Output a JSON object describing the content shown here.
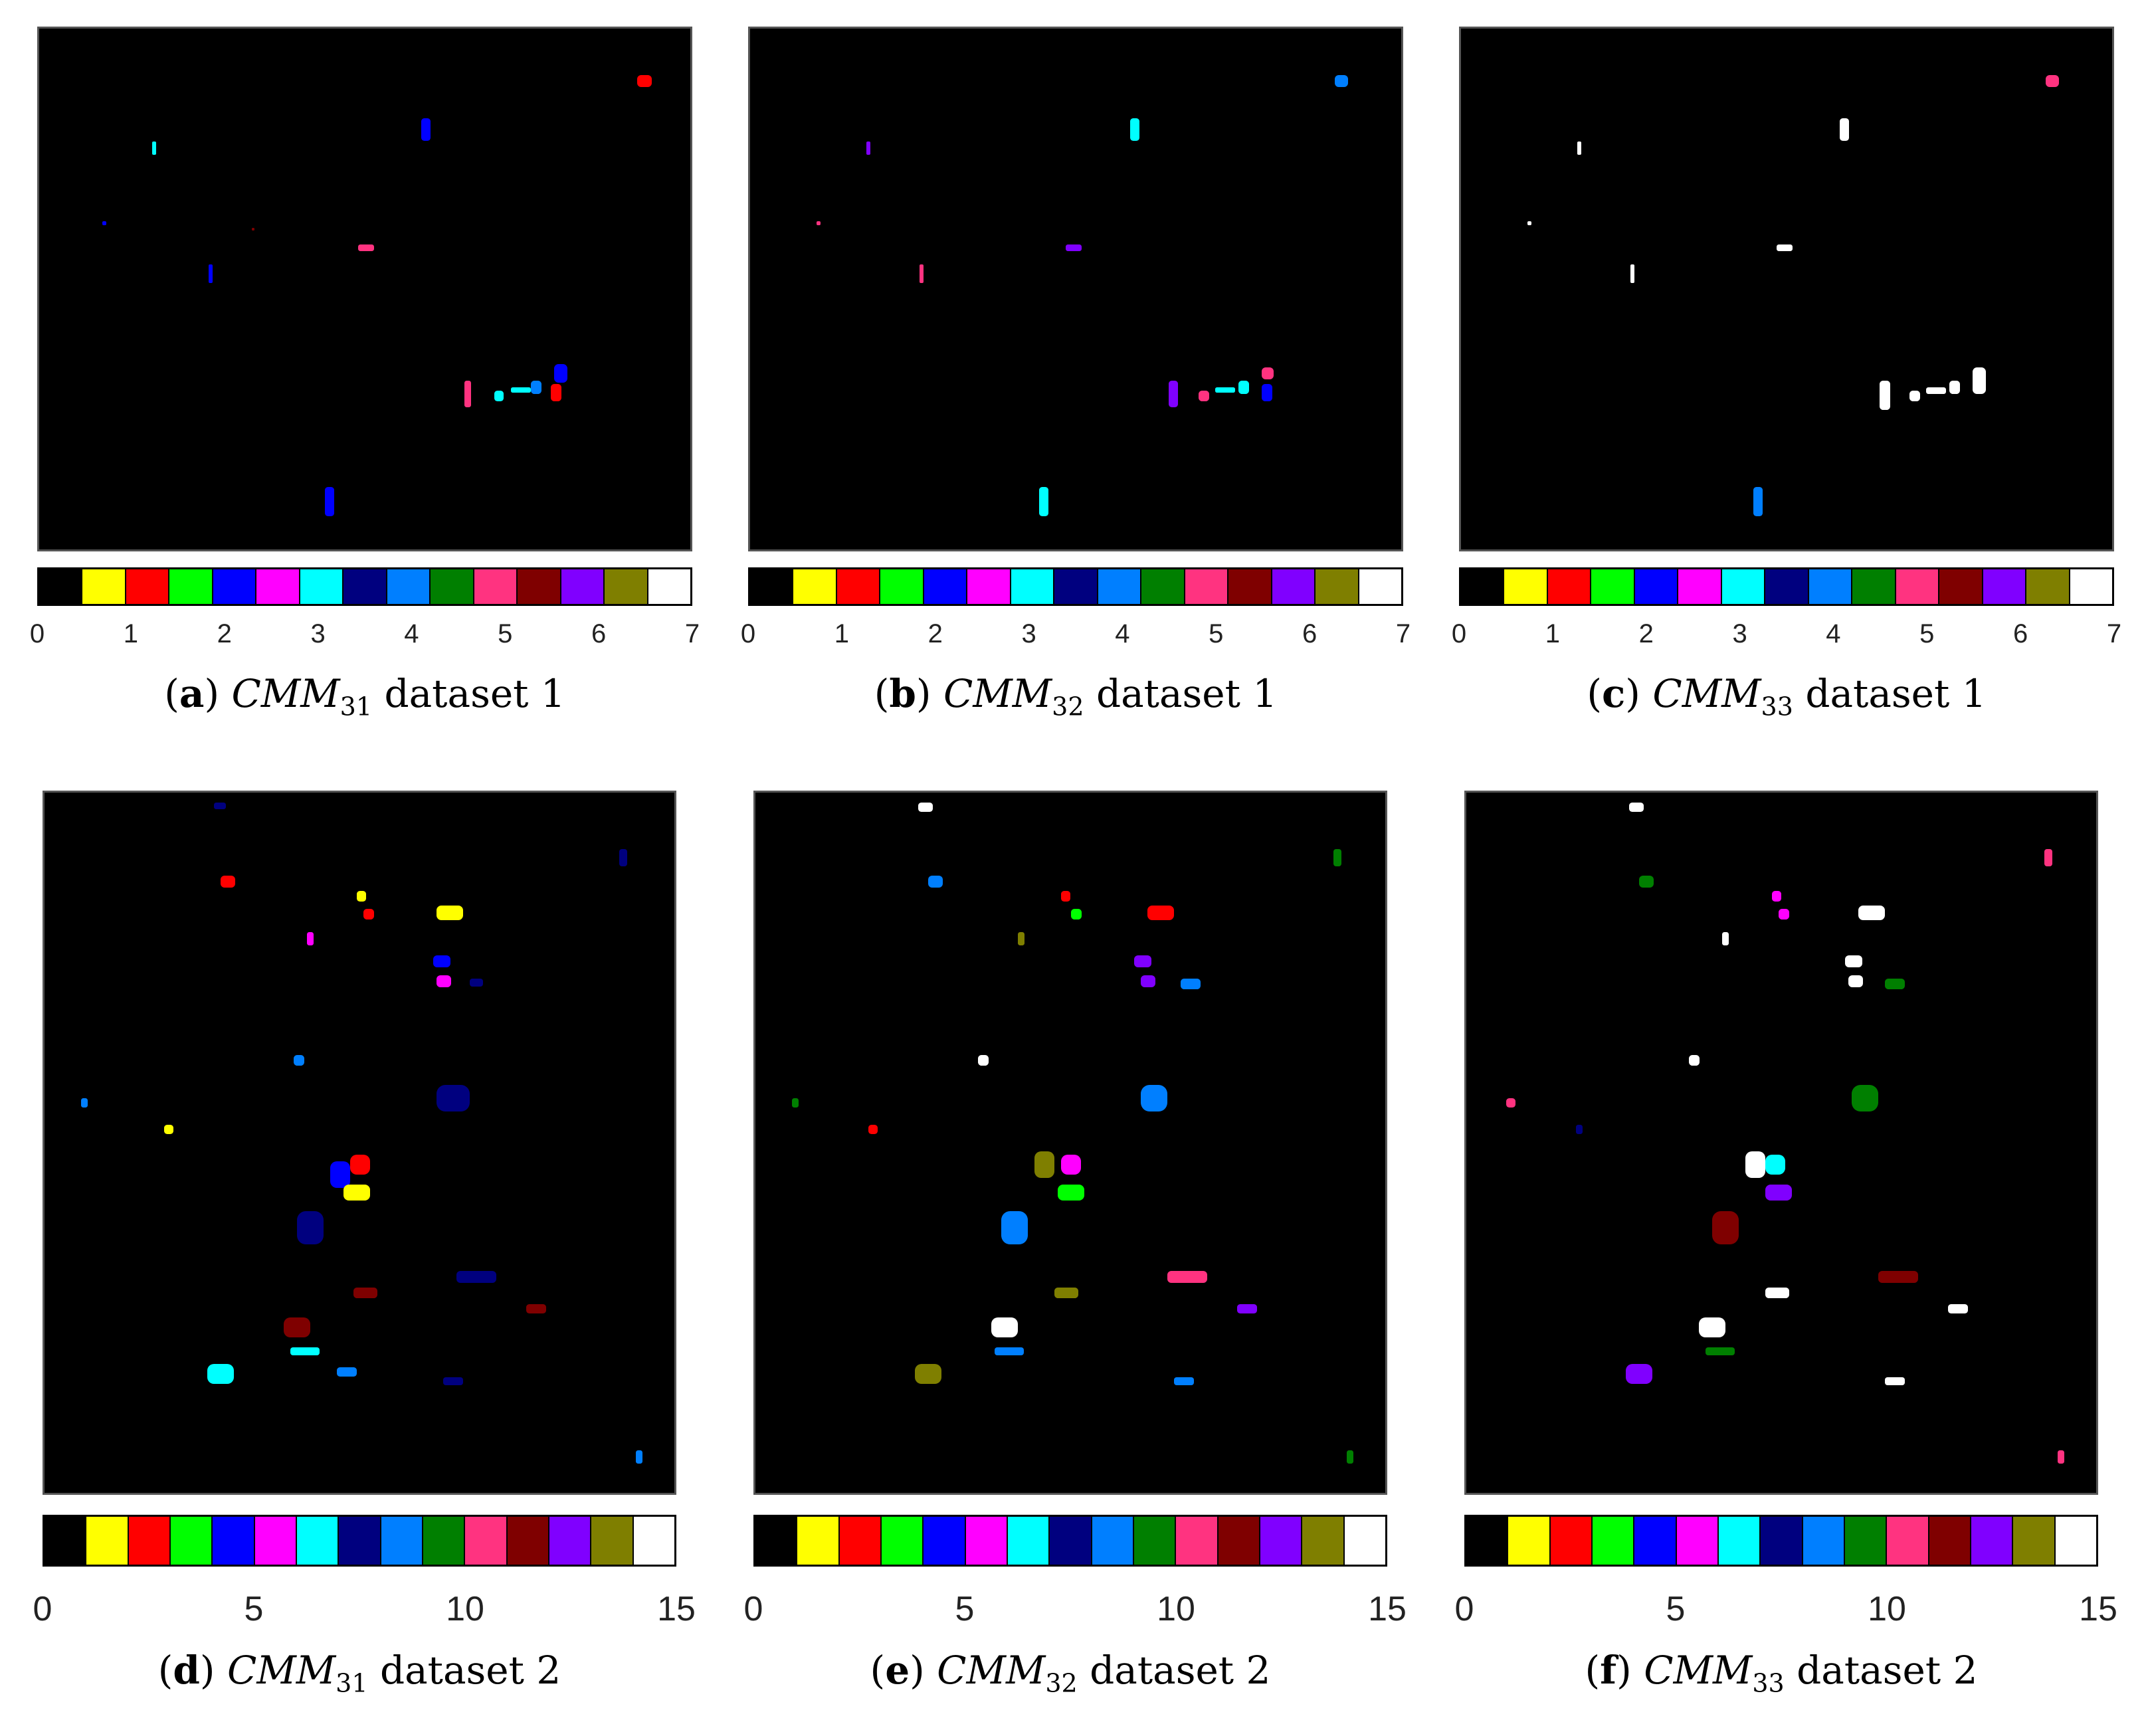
{
  "colors": [
    "#000000",
    "#ffff00",
    "#ff0000",
    "#00ff00",
    "#0000ff",
    "#ff00ff",
    "#00ffff",
    "#00007f",
    "#007fff",
    "#007f00",
    "#ff3380",
    "#7f0000",
    "#8000ff",
    "#7f7f00",
    "#ffffff"
  ],
  "panels": [
    {
      "label": "a",
      "model": "CMM",
      "sub": "31",
      "dataset": "dataset 1",
      "ticks": [
        "0",
        "1",
        "2",
        "3",
        "4",
        "5",
        "6",
        "7"
      ],
      "chart_data": {
        "type": "heatmap",
        "classes": 15,
        "colorbar_range": [
          0,
          7
        ],
        "background_class": 0
      }
    },
    {
      "label": "b",
      "model": "CMM",
      "sub": "32",
      "dataset": "dataset 1",
      "ticks": [
        "0",
        "1",
        "2",
        "3",
        "4",
        "5",
        "6",
        "7"
      ],
      "chart_data": {
        "type": "heatmap",
        "classes": 15,
        "colorbar_range": [
          0,
          7
        ],
        "background_class": 0
      }
    },
    {
      "label": "c",
      "model": "CMM",
      "sub": "33",
      "dataset": "dataset 1",
      "ticks": [
        "0",
        "1",
        "2",
        "3",
        "4",
        "5",
        "6",
        "7"
      ],
      "chart_data": {
        "type": "heatmap",
        "classes": 15,
        "colorbar_range": [
          0,
          7
        ],
        "background_class": 0
      }
    },
    {
      "label": "d",
      "model": "CMM",
      "sub": "31",
      "dataset": "dataset 2",
      "ticks": [
        "0",
        "5",
        "10",
        "15"
      ],
      "chart_data": {
        "type": "heatmap",
        "classes": 15,
        "colorbar_range": [
          0,
          15
        ],
        "background_class": 0
      }
    },
    {
      "label": "e",
      "model": "CMM",
      "sub": "32",
      "dataset": "dataset 2",
      "ticks": [
        "0",
        "5",
        "10",
        "15"
      ],
      "chart_data": {
        "type": "heatmap",
        "classes": 15,
        "colorbar_range": [
          0,
          15
        ],
        "background_class": 0
      }
    },
    {
      "label": "f",
      "model": "CMM",
      "sub": "33",
      "dataset": "dataset 2",
      "ticks": [
        "0",
        "5",
        "10",
        "15"
      ],
      "chart_data": {
        "type": "heatmap",
        "classes": 15,
        "colorbar_range": [
          0,
          15
        ],
        "background_class": 0
      }
    }
  ]
}
